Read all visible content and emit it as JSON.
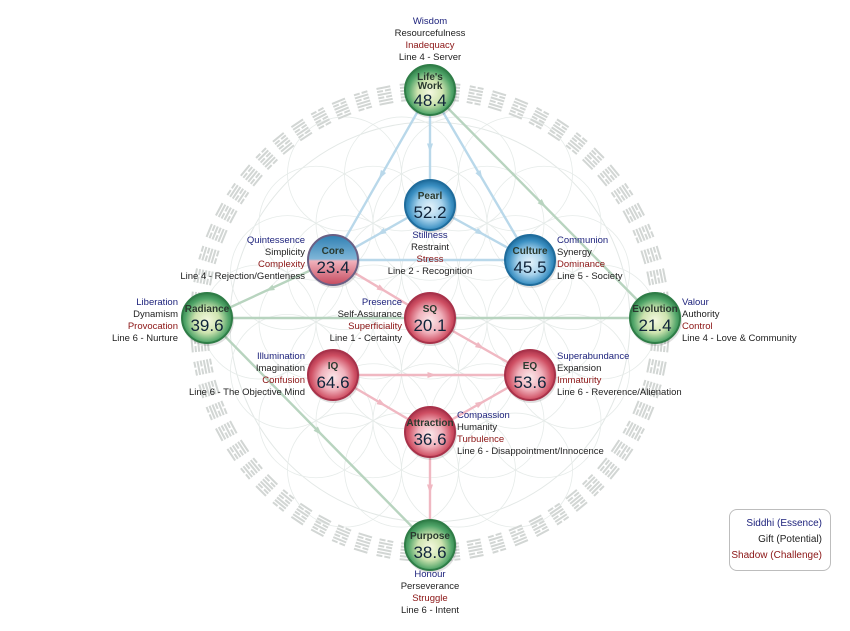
{
  "nodes": [
    {
      "id": "lifes-work",
      "name1": "Life's",
      "name2": "Work",
      "value": "48.4",
      "color": "green",
      "labels": {
        "siddhi": "Wisdom",
        "gift": "Resourcefulness",
        "shadow": "Inadequacy",
        "line": "Line 4 - Server"
      }
    },
    {
      "id": "pearl",
      "name1": "Pearl",
      "name2": "",
      "value": "52.2",
      "color": "blue",
      "labels": {
        "siddhi": "",
        "gift": "Stillness",
        "shadow": "Restraint",
        "line": ""
      }
    },
    {
      "id": "core",
      "name1": "Core",
      "name2": "",
      "value": "23.4",
      "color": "blue-red",
      "labels": {
        "siddhi": "Quintessence",
        "gift": "Simplicity",
        "shadow": "Complexity",
        "line": "Line 4 - Rejection/Gentleness"
      }
    },
    {
      "id": "culture",
      "name1": "Culture",
      "name2": "",
      "value": "45.5",
      "color": "blue",
      "labels": {
        "siddhi": "Communion",
        "gift": "Synergy",
        "shadow": "Dominance",
        "line": "Line 5 - Society"
      }
    },
    {
      "id": "radiance",
      "name1": "Radiance",
      "name2": "",
      "value": "39.6",
      "color": "green",
      "labels": {
        "siddhi": "Liberation",
        "gift": "Dynamism",
        "shadow": "Provocation",
        "line": "Line 6 - Nurture"
      }
    },
    {
      "id": "sq",
      "name1": "SQ",
      "name2": "",
      "value": "20.1",
      "color": "red",
      "labels": {
        "siddhi": "Presence",
        "gift": "Self-Assurance",
        "shadow": "Superficiality",
        "line": "Line 1 - Certainty"
      }
    },
    {
      "id": "evolution",
      "name1": "Evolution",
      "name2": "",
      "value": "21.4",
      "color": "green",
      "labels": {
        "siddhi": "Valour",
        "gift": "Authority",
        "shadow": "Control",
        "line": "Line 4 - Love & Community"
      }
    },
    {
      "id": "iq",
      "name1": "IQ",
      "name2": "",
      "value": "64.6",
      "color": "red",
      "labels": {
        "siddhi": "Illumination",
        "gift": "Imagination",
        "shadow": "Confusion",
        "line": "Line 6 - The Objective Mind"
      }
    },
    {
      "id": "eq",
      "name1": "EQ",
      "name2": "",
      "value": "53.6",
      "color": "red",
      "labels": {
        "siddhi": "Superabundance",
        "gift": "Expansion",
        "shadow": "Immaturity",
        "line": "Line 6 - Reverence/Alienation"
      }
    },
    {
      "id": "attraction",
      "name1": "Attraction",
      "name2": "",
      "value": "36.6",
      "color": "red",
      "labels": {
        "siddhi": "Compassion",
        "gift": "Humanity",
        "shadow": "Turbulence",
        "line": "Line 6 - Disappointment/Innocence"
      }
    },
    {
      "id": "purpose",
      "name1": "Purpose",
      "name2": "",
      "value": "38.6",
      "color": "green",
      "labels": {
        "siddhi": "Honour",
        "gift": "Perseverance",
        "shadow": "Struggle",
        "line": "Line 6 - Intent"
      }
    }
  ],
  "pearl_extra": {
    "shadow": "Stress",
    "line": "Line 2 - Recognition"
  },
  "legend": {
    "siddhi": "Siddhi (Essence)",
    "gift": "Gift (Potential)",
    "shadow": "Shadow (Challenge)"
  },
  "colors": {
    "siddhi": "#1a1f7a",
    "gift": "#222222",
    "shadow": "#8b1414",
    "blue": "#2f86b8",
    "green": "#3c9a5a",
    "red": "#c9475a",
    "blue_path": "#b9d8ea",
    "green_path": "#b8d4bf",
    "red_path": "#f0b8c2"
  }
}
